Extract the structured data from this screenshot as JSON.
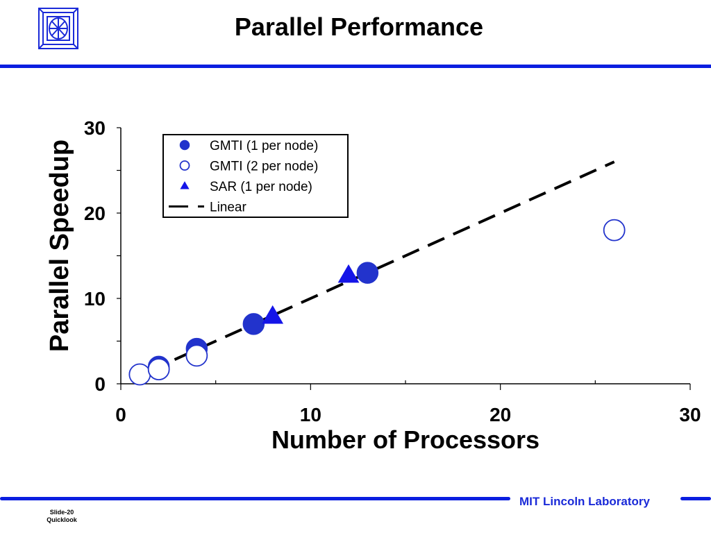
{
  "slide": {
    "title": "Parallel Performance",
    "footer_org": "MIT Lincoln Laboratory",
    "slide_number": "Slide-20",
    "slide_section": "Quicklook",
    "accent_color": "#0a1ee0"
  },
  "chart_data": {
    "type": "scatter",
    "title": "",
    "xlabel": "Number of Processors",
    "ylabel": "Parallel Speedup",
    "xlim": [
      0,
      30
    ],
    "ylim": [
      0,
      30
    ],
    "xticks": [
      0,
      10,
      20,
      30
    ],
    "yticks": [
      0,
      10,
      20,
      30
    ],
    "grid": false,
    "legend_position": "top-left",
    "series": [
      {
        "name": "GMTI (1 per node)",
        "marker": "filled-circle",
        "color": "#2233cc",
        "x": [
          2,
          4,
          7,
          13
        ],
        "y": [
          2,
          4.1,
          7,
          13
        ]
      },
      {
        "name": "GMTI (2 per node)",
        "marker": "open-circle",
        "color": "#2233cc",
        "x": [
          1,
          2,
          4,
          26
        ],
        "y": [
          1.1,
          1.7,
          3.3,
          18
        ]
      },
      {
        "name": "SAR (1 per node)",
        "marker": "filled-triangle",
        "color": "#1515e8",
        "x": [
          8,
          12
        ],
        "y": [
          7.9,
          12.7
        ]
      },
      {
        "name": "Linear",
        "marker": "dashed-line",
        "color": "#000000",
        "x": [
          1.5,
          26
        ],
        "y": [
          1.5,
          26
        ]
      }
    ]
  }
}
